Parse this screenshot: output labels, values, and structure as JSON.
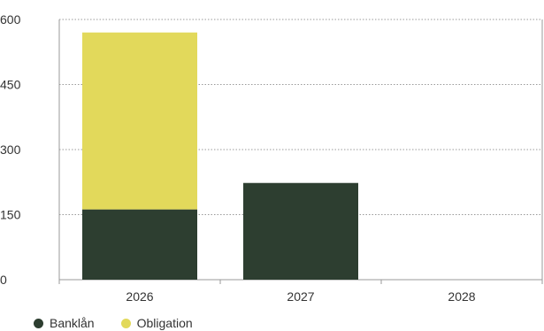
{
  "chart_data": {
    "type": "bar",
    "stacked": true,
    "categories": [
      "2026",
      "2027",
      "2028"
    ],
    "series": [
      {
        "name": "Banklån",
        "color": "#2d3e30",
        "values": [
          162,
          223,
          0
        ]
      },
      {
        "name": "Obligation",
        "color": "#e2d95b",
        "values": [
          408,
          0,
          0
        ]
      }
    ],
    "ylim": [
      0,
      600
    ],
    "yticks": [
      0,
      150,
      300,
      450,
      600
    ],
    "grid": true,
    "legend_position": "bottom-left"
  }
}
